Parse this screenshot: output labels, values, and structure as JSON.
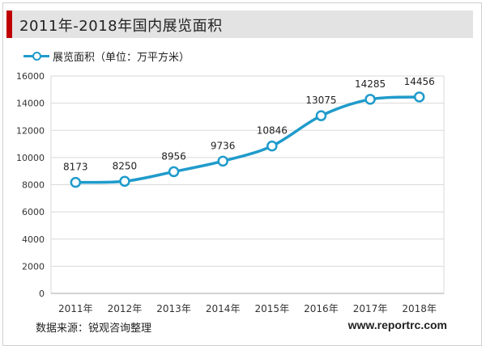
{
  "header": {
    "title": "2011年-2018年国内展览面积"
  },
  "legend": {
    "label": "展览面积（单位：万平方米）"
  },
  "footer": {
    "source": "数据来源：锐观咨询整理",
    "website": "www.reportrc.com"
  },
  "colors": {
    "line": "#1f9bcb",
    "accent": "#c00000",
    "title_bg": "#e3e3e3",
    "grid": "#d9d9d9"
  },
  "chart_data": {
    "type": "line",
    "categories": [
      "2011年",
      "2012年",
      "2013年",
      "2014年",
      "2015年",
      "2016年",
      "2017年",
      "2018年"
    ],
    "series": [
      {
        "name": "展览面积（单位：万平方米）",
        "values": [
          8173,
          8250,
          8956,
          9736,
          10846,
          13075,
          14285,
          14456
        ]
      }
    ],
    "ylim": [
      0,
      16000
    ],
    "yticks": [
      0,
      2000,
      4000,
      6000,
      8000,
      10000,
      12000,
      14000,
      16000
    ],
    "grid": true,
    "data_labels": true,
    "legend_position": "top-left"
  }
}
